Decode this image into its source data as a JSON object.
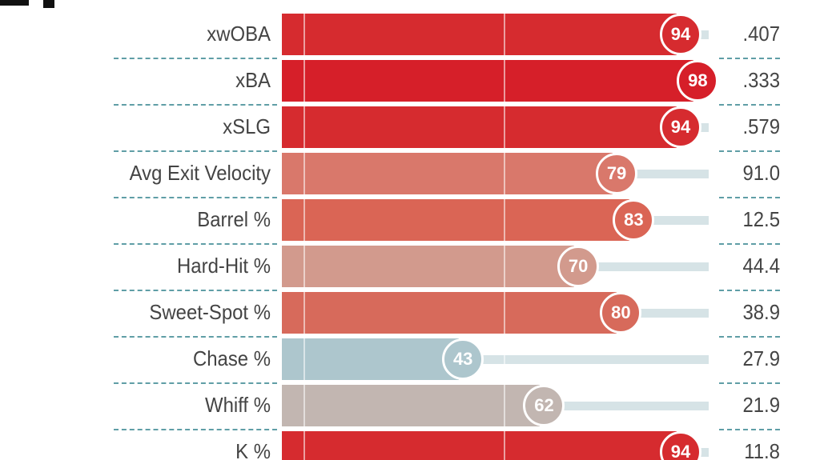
{
  "chart_data": {
    "type": "bar",
    "orientation": "horizontal",
    "xlim": [
      0,
      100
    ],
    "rows": [
      {
        "label": "xwOBA",
        "percentile": 94,
        "value": ".407",
        "color": "#d62b2f"
      },
      {
        "label": "xBA",
        "percentile": 98,
        "value": ".333",
        "color": "#d61f29"
      },
      {
        "label": "xSLG",
        "percentile": 94,
        "value": ".579",
        "color": "#d62b2f"
      },
      {
        "label": "Avg Exit Velocity",
        "percentile": 79,
        "value": "91.0",
        "color": "#d9786b"
      },
      {
        "label": "Barrel %",
        "percentile": 83,
        "value": "12.5",
        "color": "#da6555"
      },
      {
        "label": "Hard-Hit %",
        "percentile": 70,
        "value": "44.4",
        "color": "#d29a8d"
      },
      {
        "label": "Sweet-Spot %",
        "percentile": 80,
        "value": "38.9",
        "color": "#d76a5b"
      },
      {
        "label": "Chase %",
        "percentile": 43,
        "value": "27.9",
        "color": "#adc6cd"
      },
      {
        "label": "Whiff %",
        "percentile": 62,
        "value": "21.9",
        "color": "#c2b6b1"
      },
      {
        "label": "K %",
        "percentile": 94,
        "value": "11.8",
        "color": "#d62b2f"
      }
    ]
  }
}
